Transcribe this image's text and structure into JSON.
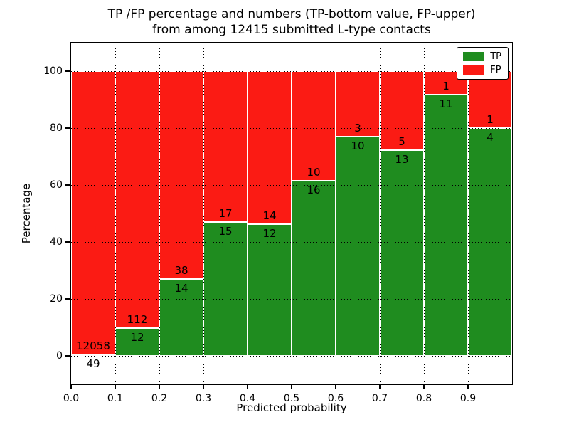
{
  "chart_data": {
    "type": "bar",
    "stacked": true,
    "title": "TP /FP percentage and numbers (TP-bottom value, FP-upper)\nfrom among 12415 submitted L-type contacts",
    "title_line1": "TP /FP percentage and numbers (TP-bottom value, FP-upper)",
    "title_line2": "from among 12415 submitted L-type contacts",
    "xlabel": "Predicted probability",
    "ylabel": "Percentage",
    "total_contacts": 12415,
    "xlim": [
      0.0,
      1.0
    ],
    "ylim": [
      -10,
      110
    ],
    "grid": true,
    "x_tick_labels": [
      "0.0",
      "0.1",
      "0.2",
      "0.3",
      "0.4",
      "0.5",
      "0.6",
      "0.7",
      "0.8",
      "0.9"
    ],
    "y_tick_values": [
      0,
      20,
      40,
      60,
      80,
      100
    ],
    "y_tick_labels": [
      "0",
      "20",
      "40",
      "60",
      "80",
      "100"
    ],
    "bin_width": 0.1,
    "bins": [
      {
        "range": "0.0-0.1",
        "tp_count": 49,
        "fp_count": 12058,
        "tp_pct": 0.4,
        "fp_pct": 99.6
      },
      {
        "range": "0.1-0.2",
        "tp_count": 12,
        "fp_count": 112,
        "tp_pct": 9.68,
        "fp_pct": 90.32
      },
      {
        "range": "0.2-0.3",
        "tp_count": 14,
        "fp_count": 38,
        "tp_pct": 26.92,
        "fp_pct": 73.08
      },
      {
        "range": "0.3-0.4",
        "tp_count": 15,
        "fp_count": 17,
        "tp_pct": 46.88,
        "fp_pct": 53.12
      },
      {
        "range": "0.4-0.5",
        "tp_count": 12,
        "fp_count": 14,
        "tp_pct": 46.15,
        "fp_pct": 53.85
      },
      {
        "range": "0.5-0.6",
        "tp_count": 16,
        "fp_count": 10,
        "tp_pct": 61.54,
        "fp_pct": 38.46
      },
      {
        "range": "0.6-0.7",
        "tp_count": 10,
        "fp_count": 3,
        "tp_pct": 76.92,
        "fp_pct": 23.08
      },
      {
        "range": "0.7-0.8",
        "tp_count": 13,
        "fp_count": 5,
        "tp_pct": 72.22,
        "fp_pct": 27.78
      },
      {
        "range": "0.8-0.9",
        "tp_count": 11,
        "fp_count": 1,
        "tp_pct": 91.67,
        "fp_pct": 8.33
      },
      {
        "range": "0.9-1.0",
        "tp_count": 4,
        "fp_count": 1,
        "tp_pct": 80.0,
        "fp_pct": 20.0
      }
    ],
    "colors": {
      "tp": "#1f8c1f",
      "fp": "#fb1b14",
      "bar_edge": "#ffffff",
      "grid": "#000000",
      "background": "#ffffff"
    },
    "legend": {
      "position": "upper right",
      "entries": [
        {
          "label": "TP",
          "color": "#1f8c1f"
        },
        {
          "label": "FP",
          "color": "#fb1b14"
        }
      ]
    }
  }
}
